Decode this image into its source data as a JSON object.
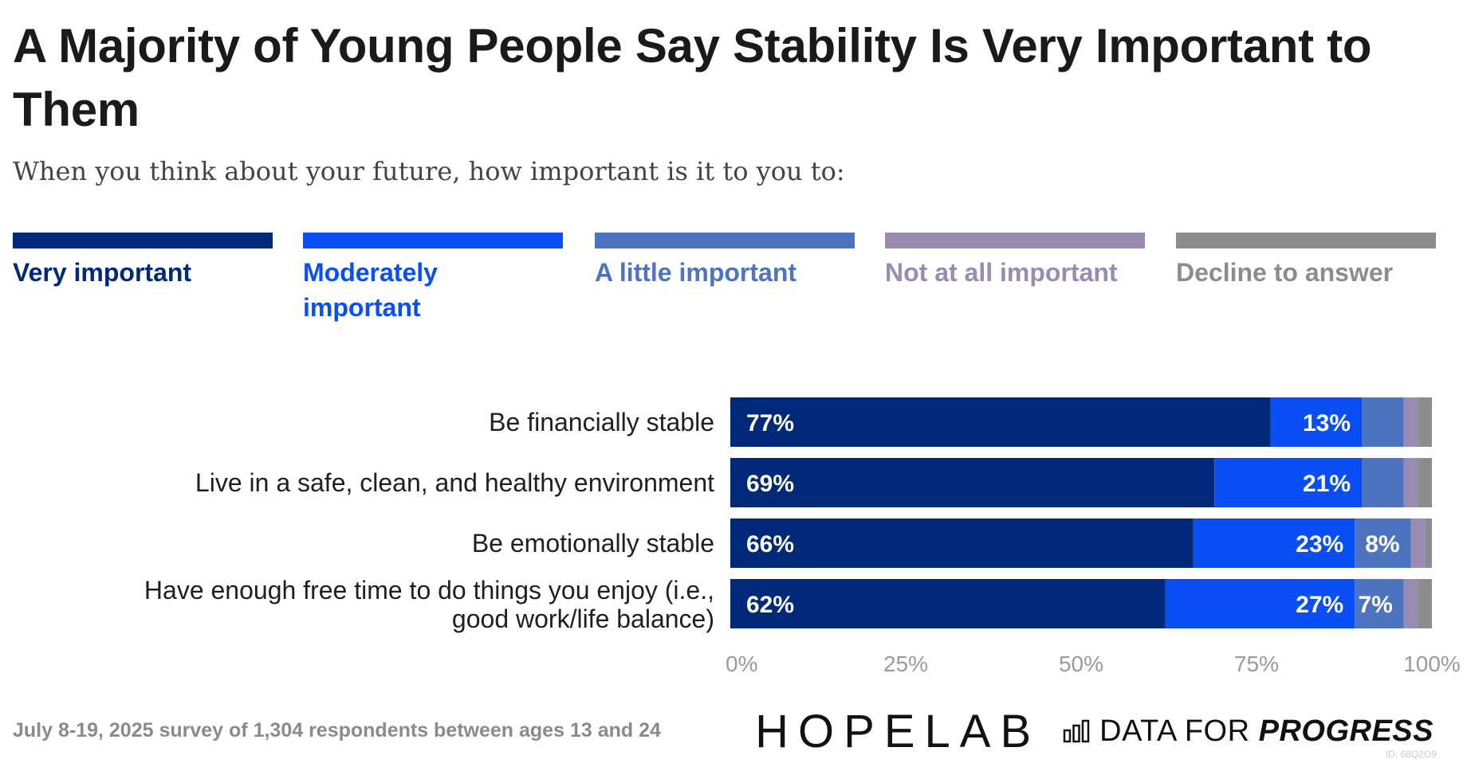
{
  "title": "A Majority of Young People Say Stability Is Very Important to Them",
  "subtitle": "When you think about your future, how important is it to you to:",
  "legend": [
    {
      "label": "Very important",
      "color": "#00297A"
    },
    {
      "label": "Moderately important",
      "color": "#0A4FF5"
    },
    {
      "label": "A little important",
      "color": "#4E73BF"
    },
    {
      "label": "Not at all important",
      "color": "#9A8BB0"
    },
    {
      "label": "Decline to answer",
      "color": "#8C8C8C"
    }
  ],
  "chart_data": {
    "type": "bar",
    "orientation": "horizontal",
    "stacked": true,
    "categories": [
      "Be financially stable",
      "Live in a safe, clean, and healthy environment",
      "Be emotionally stable",
      "Have enough free time to do things you enjoy (i.e., good work/life balance)"
    ],
    "series": [
      {
        "name": "Very important",
        "color": "#00297A",
        "values": [
          77,
          69,
          66,
          62
        ]
      },
      {
        "name": "Moderately important",
        "color": "#0A4FF5",
        "values": [
          13,
          21,
          23,
          27
        ]
      },
      {
        "name": "A little important",
        "color": "#4E73BF",
        "values": [
          6,
          6,
          8,
          7
        ]
      },
      {
        "name": "Not at all important",
        "color": "#9A8BB0",
        "values": [
          2,
          2,
          2,
          2
        ]
      },
      {
        "name": "Decline to answer",
        "color": "#8C8C8C",
        "values": [
          2,
          2,
          1,
          2
        ]
      }
    ],
    "data_labels": [
      [
        "77%",
        "13%",
        "",
        "",
        ""
      ],
      [
        "69%",
        "21%",
        "",
        "",
        ""
      ],
      [
        "66%",
        "23%",
        "8%",
        "",
        ""
      ],
      [
        "62%",
        "27%",
        "7%",
        "",
        ""
      ]
    ],
    "xlim": [
      0,
      100
    ],
    "x_ticks": [
      "0%",
      "25%",
      "50%",
      "75%",
      "100%"
    ],
    "grid": false
  },
  "footnote": "July 8-19, 2025 survey of 1,304 respondents between ages 13 and 24",
  "logos": {
    "hopelab": "HOPELAB",
    "dfp_regular": "DATA FOR ",
    "dfp_bold": "PROGRESS"
  },
  "chart_id": "ID: 68Q2O9"
}
